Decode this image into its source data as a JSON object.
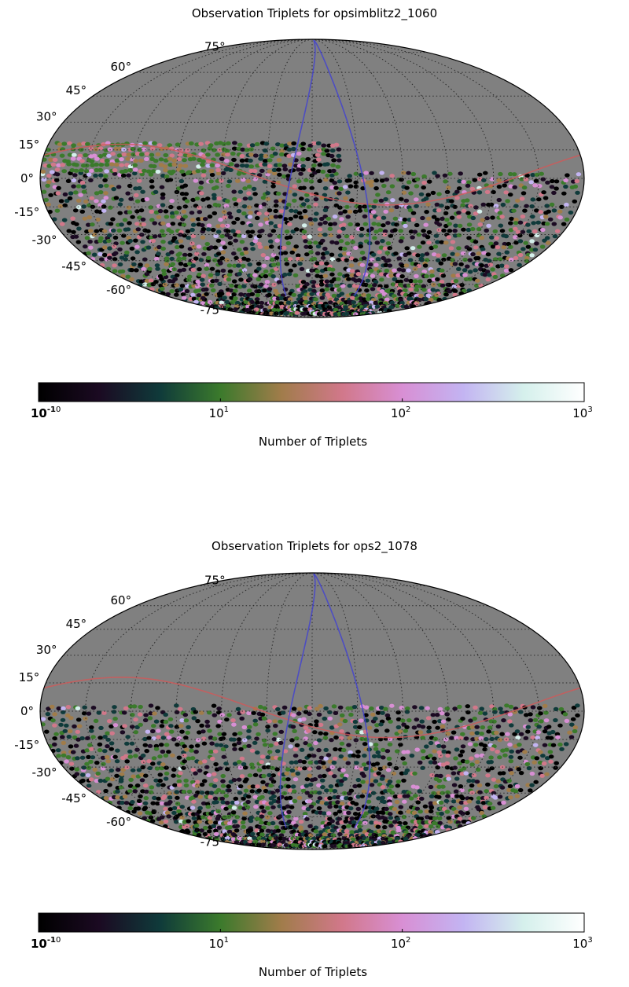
{
  "colors": {
    "map_background": "#808080",
    "grid_line": "#2b2b2b",
    "galactic_plane": "#cc5a5a",
    "ecliptic": "#4444cc",
    "colormap": [
      "#000000",
      "#1b0a22",
      "#0f3a3a",
      "#3b7a2c",
      "#a07c4a",
      "#d1788a",
      "#d88fd4",
      "#c3b4f2",
      "#d5f0ec",
      "#ffffff"
    ]
  },
  "chart_data": [
    {
      "type": "heatmap",
      "projection": "mollweide",
      "title": "Observation Triplets for opsimblitz2_1060",
      "latitude_ticks": [
        "75°",
        "60°",
        "45°",
        "30°",
        "15°",
        "0°",
        "-15°",
        "-30°",
        "-45°",
        "-60°",
        "-75°"
      ],
      "grid": true,
      "colorbar": {
        "label": "Number of Triplets",
        "scale": "log",
        "range": [
          1,
          1000
        ],
        "ticks": [
          "10",
          "10",
          "10",
          "10"
        ],
        "tick_exponents": [
          "-1",
          "1",
          "2",
          "3"
        ],
        "overlap_exponent": "0",
        "colormap": "cubehelix"
      },
      "overlays": [
        "galactic-plane",
        "ecliptic"
      ],
      "coverage": "southern sky with dense northern band between 0° and +15° dec"
    },
    {
      "type": "heatmap",
      "projection": "mollweide",
      "title": "Observation Triplets for ops2_1078",
      "latitude_ticks": [
        "75°",
        "60°",
        "45°",
        "30°",
        "15°",
        "0°",
        "-15°",
        "-30°",
        "-45°",
        "-60°",
        "-75°"
      ],
      "grid": true,
      "colorbar": {
        "label": "Number of Triplets",
        "scale": "log",
        "range": [
          1,
          1000
        ],
        "ticks": [
          "10",
          "10",
          "10",
          "10"
        ],
        "tick_exponents": [
          "-1",
          "1",
          "2",
          "3"
        ],
        "overlap_exponent": "0",
        "colormap": "cubehelix"
      },
      "overlays": [
        "galactic-plane",
        "ecliptic"
      ],
      "coverage": "southern sky from 0° to about -70° dec"
    }
  ]
}
